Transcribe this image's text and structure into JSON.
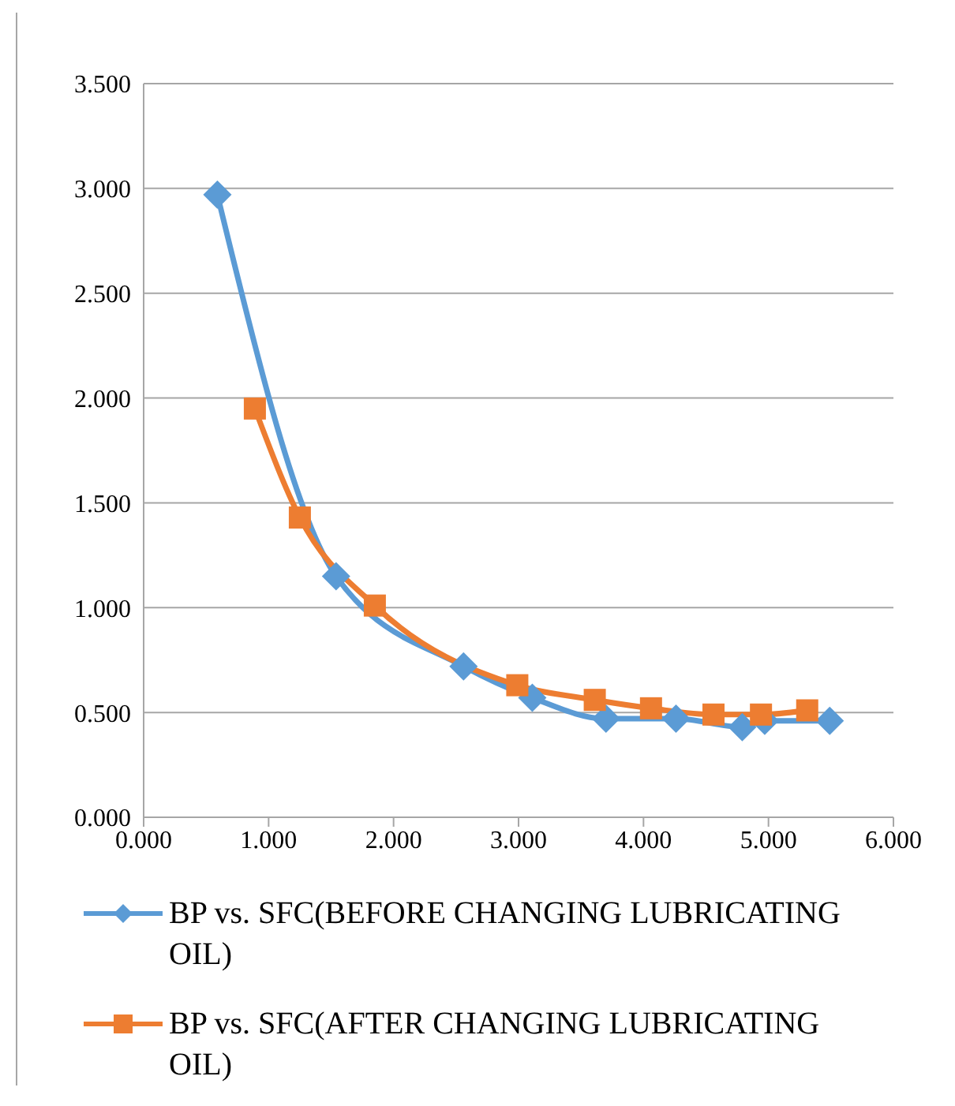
{
  "chart_data": {
    "type": "line",
    "xlim": [
      0,
      6
    ],
    "xticks": [
      {
        "value": 0,
        "label": "0.000"
      },
      {
        "value": 1,
        "label": "1.000"
      },
      {
        "value": 2,
        "label": "2.000"
      },
      {
        "value": 3,
        "label": "3.000"
      },
      {
        "value": 4,
        "label": "4.000"
      },
      {
        "value": 5,
        "label": "5.000"
      },
      {
        "value": 6,
        "label": "6.000"
      }
    ],
    "ylim": [
      0,
      3.5
    ],
    "yticks": [
      {
        "value": 0,
        "label": "0.000"
      },
      {
        "value": 0.5,
        "label": "0.500"
      },
      {
        "value": 1,
        "label": "1.000"
      },
      {
        "value": 1.5,
        "label": "1.500"
      },
      {
        "value": 2,
        "label": "2.000"
      },
      {
        "value": 2.5,
        "label": "2.500"
      },
      {
        "value": 3,
        "label": "3.000"
      },
      {
        "value": 3.5,
        "label": "3.500"
      }
    ],
    "grid": "y",
    "legend": "bottom",
    "series": [
      {
        "name": "BP vs. SFC(BEFORE CHANGING LUBRICATING OIL)",
        "color": "#5b9bd5",
        "marker": "diamond",
        "x": [
          0.59,
          1.54,
          2.56,
          3.11,
          3.7,
          4.26,
          4.79,
          4.97,
          5.49
        ],
        "values": [
          2.97,
          1.15,
          0.72,
          0.57,
          0.47,
          0.47,
          0.43,
          0.46,
          0.46
        ]
      },
      {
        "name": "BP vs. SFC(AFTER CHANGING LUBRICATING OIL)",
        "color": "#ed7d31",
        "marker": "square",
        "x": [
          0.89,
          1.25,
          1.85,
          2.99,
          3.61,
          4.06,
          4.56,
          4.94,
          5.31
        ],
        "values": [
          1.95,
          1.43,
          1.01,
          0.63,
          0.56,
          0.52,
          0.49,
          0.49,
          0.51
        ]
      }
    ]
  }
}
